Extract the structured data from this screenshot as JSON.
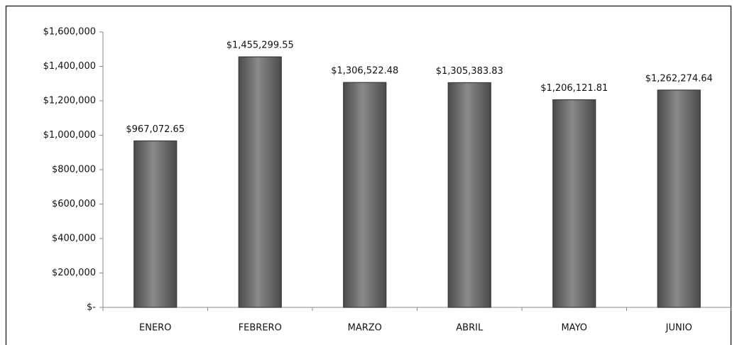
{
  "chart_data": {
    "type": "bar",
    "categories": [
      "ENERO",
      "FEBRERO",
      "MARZO",
      "ABRIL",
      "MAYO",
      "JUNIO"
    ],
    "values": [
      967072.65,
      1455299.55,
      1306522.48,
      1305383.83,
      1206121.81,
      1262274.64
    ],
    "value_labels": [
      "$967,072.65",
      "$1,455,299.55",
      "$1,306,522.48",
      "$1,305,383.83",
      "$1,206,121.81",
      "$1,262,274.64"
    ],
    "color": "#3a3a3a",
    "ylim": [
      0,
      1600000
    ],
    "yticks": [
      {
        "value": 0,
        "label": "$-"
      },
      {
        "value": 200000,
        "label": "$200,000"
      },
      {
        "value": 400000,
        "label": "$400,000"
      },
      {
        "value": 600000,
        "label": "$600,000"
      },
      {
        "value": 800000,
        "label": "$800,000"
      },
      {
        "value": 1000000,
        "label": "$1,000,000"
      },
      {
        "value": 1200000,
        "label": "$1,200,000"
      },
      {
        "value": 1400000,
        "label": "$1,400,000"
      },
      {
        "value": 1600000,
        "label": "$1,600,000"
      }
    ],
    "grid": false
  }
}
